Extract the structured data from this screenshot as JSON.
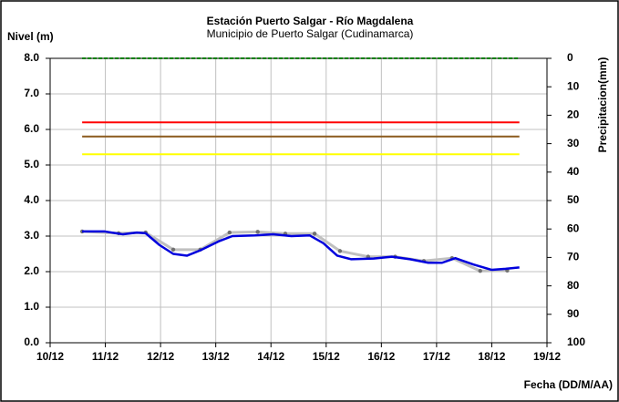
{
  "chart_data": {
    "type": "line",
    "title": "Estación Puerto Salgar - Río Magdalena",
    "subtitle": "Municipio de Puerto Salgar (Cudinamarca)",
    "y_label": "Nivel (m)",
    "y2_label": "Precipitacion(mm)",
    "x_label": "Fecha (DD/M/AA)",
    "xlim": [
      10,
      19
    ],
    "xticks": [
      {
        "value": 10,
        "label": "10/12"
      },
      {
        "value": 11,
        "label": "11/12"
      },
      {
        "value": 12,
        "label": "12/12"
      },
      {
        "value": 13,
        "label": "13/12"
      },
      {
        "value": 14,
        "label": "14/12"
      },
      {
        "value": 15,
        "label": "15/12"
      },
      {
        "value": 16,
        "label": "16/12"
      },
      {
        "value": 17,
        "label": "17/12"
      },
      {
        "value": 18,
        "label": "18/12"
      },
      {
        "value": 19,
        "label": "19/12"
      }
    ],
    "ylim": [
      0,
      8
    ],
    "yticks": [
      {
        "value": 0,
        "label": "0.0"
      },
      {
        "value": 1,
        "label": "1.0"
      },
      {
        "value": 2,
        "label": "2.0"
      },
      {
        "value": 3,
        "label": "3.0"
      },
      {
        "value": 4,
        "label": "4.0"
      },
      {
        "value": 5,
        "label": "5.0"
      },
      {
        "value": 6,
        "label": "6.0"
      },
      {
        "value": 7,
        "label": "7.0"
      },
      {
        "value": 8,
        "label": "8.0"
      }
    ],
    "y2lim": [
      100,
      0
    ],
    "y2ticks": [
      0,
      10,
      20,
      30,
      40,
      50,
      60,
      70,
      80,
      90,
      100
    ],
    "grid": true,
    "series": [
      {
        "color": "#008000",
        "dashed": true,
        "width": 2,
        "x": [
          10.58,
          18.5
        ],
        "values": [
          8,
          8
        ]
      },
      {
        "color": "#ff0000",
        "width": 2,
        "x": [
          10.58,
          18.5
        ],
        "values": [
          6.2,
          6.2
        ]
      },
      {
        "color": "#8b5a1e",
        "width": 2,
        "x": [
          10.58,
          18.5
        ],
        "values": [
          5.8,
          5.8
        ]
      },
      {
        "color": "#ffff00",
        "width": 2,
        "x": [
          10.58,
          18.5
        ],
        "values": [
          5.3,
          5.3
        ]
      },
      {
        "color": "#c0c0c0",
        "width": 3,
        "markers": true,
        "x": [
          10.58,
          11.24,
          11.73,
          12.23,
          12.72,
          13.25,
          13.76,
          14.26,
          14.79,
          15.25,
          15.76,
          16.25,
          16.77,
          17.28,
          17.79,
          18.28
        ],
        "values": [
          3.13,
          3.08,
          3.1,
          2.62,
          2.62,
          3.1,
          3.12,
          3.07,
          3.07,
          2.58,
          2.42,
          2.42,
          2.3,
          2.38,
          2.02,
          2.03
        ]
      },
      {
        "color": "#0000dd",
        "width": 2.5,
        "x": [
          10.58,
          10.99,
          11.32,
          11.57,
          11.73,
          11.98,
          12.23,
          12.48,
          12.72,
          13.05,
          13.3,
          13.71,
          14.04,
          14.37,
          14.7,
          14.95,
          15.2,
          15.45,
          15.86,
          16.19,
          16.52,
          16.85,
          17.1,
          17.34,
          17.67,
          18.0,
          18.25,
          18.5
        ],
        "values": [
          3.13,
          3.13,
          3.05,
          3.1,
          3.08,
          2.75,
          2.5,
          2.45,
          2.6,
          2.85,
          3.0,
          3.02,
          3.05,
          3.0,
          3.02,
          2.8,
          2.45,
          2.35,
          2.37,
          2.42,
          2.35,
          2.25,
          2.25,
          2.38,
          2.2,
          2.05,
          2.08,
          2.12
        ]
      }
    ]
  }
}
